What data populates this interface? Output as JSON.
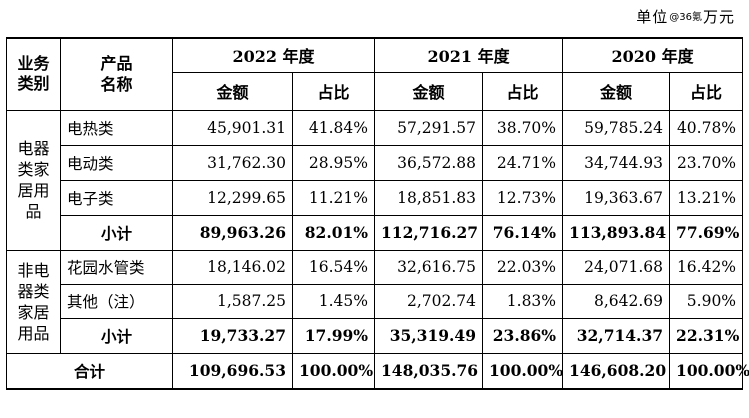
{
  "unit_note": {
    "pre": "单位",
    "stamp": "@36氪",
    "post": "万元"
  },
  "header": {
    "business_type": "业务类别",
    "product_name": "产品名称",
    "years": [
      "2022 年度",
      "2021 年度",
      "2020 年度"
    ],
    "amount": "金额",
    "ratio": "占比"
  },
  "groups": [
    {
      "label": "电器类家居用品",
      "rows": [
        {
          "name": "电热类",
          "values": [
            "45,901.31",
            "41.84%",
            "57,291.57",
            "38.70%",
            "59,785.24",
            "40.78%"
          ]
        },
        {
          "name": "电动类",
          "values": [
            "31,762.30",
            "28.95%",
            "36,572.88",
            "24.71%",
            "34,744.93",
            "23.70%"
          ]
        },
        {
          "name": "电子类",
          "values": [
            "12,299.65",
            "11.21%",
            "18,851.83",
            "12.73%",
            "19,363.67",
            "13.21%"
          ]
        }
      ],
      "subtotal": {
        "name": "小计",
        "values": [
          "89,963.26",
          "82.01%",
          "112,716.27",
          "76.14%",
          "113,893.84",
          "77.69%"
        ]
      }
    },
    {
      "label": "非电器类家居用品",
      "rows": [
        {
          "name": "花园水管类",
          "values": [
            "18,146.02",
            "16.54%",
            "32,616.75",
            "22.03%",
            "24,071.68",
            "16.42%"
          ]
        },
        {
          "name": "其他（注）",
          "values": [
            "1,587.25",
            "1.45%",
            "2,702.74",
            "1.83%",
            "8,642.69",
            "5.90%"
          ]
        }
      ],
      "subtotal": {
        "name": "小计",
        "values": [
          "19,733.27",
          "17.99%",
          "35,319.49",
          "23.86%",
          "32,714.37",
          "22.31%"
        ]
      }
    }
  ],
  "total": {
    "name": "合计",
    "values": [
      "109,696.53",
      "100.00%",
      "148,035.76",
      "100.00%",
      "146,608.20",
      "100.00%"
    ]
  }
}
